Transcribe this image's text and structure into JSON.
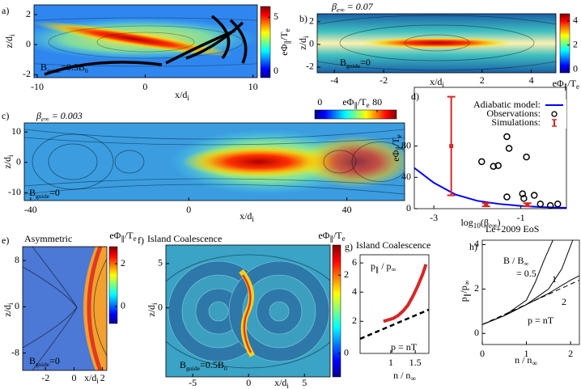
{
  "chart_data": [
    {
      "type": "heatmap",
      "label": "a)",
      "xlabel": [
        {
          "text": "x/d"
        },
        {
          "sub": "i"
        }
      ],
      "ylabel": [
        {
          "text": "z/d"
        },
        {
          "sub": "i"
        }
      ],
      "xlim": [
        -10.3,
        10.4
      ],
      "ylim": [
        -2.2,
        2.65
      ],
      "xticks": [
        -10,
        0,
        10
      ],
      "yticks": [
        -2,
        0,
        2
      ],
      "colorbar": {
        "label": [
          {
            "text": "eΦ"
          },
          {
            "sub": "∥"
          },
          {
            "text": "/T"
          },
          {
            "sub": "e"
          }
        ],
        "lim": [
          -0.6,
          6
        ],
        "ticks": [
          0,
          5
        ]
      },
      "annotations": [
        [
          {
            "text": "B"
          },
          {
            "sub": "guide"
          },
          {
            "text": "=0.5B"
          },
          {
            "sub": "0"
          }
        ]
      ]
    },
    {
      "type": "heatmap",
      "label": "b)",
      "title": [
        {
          "text": "β"
        },
        {
          "sub": "e∞"
        },
        {
          "text": " = 0.07"
        }
      ],
      "xlabel": [
        {
          "text": "x/d"
        },
        {
          "sub": "i"
        }
      ],
      "ylabel": [
        {
          "text": "z/d"
        },
        {
          "sub": "i"
        }
      ],
      "xlim": [
        -4.7,
        5.0
      ],
      "ylim": [
        -2.5,
        2.7
      ],
      "xticks": [
        -4,
        -2,
        2,
        4
      ],
      "yticks": [
        -2,
        0,
        2
      ],
      "colorbar": {
        "label": [
          {
            "text": "eΦ"
          },
          {
            "sub": "∥"
          },
          {
            "text": "/T"
          },
          {
            "sub": "e"
          }
        ],
        "lim": [
          -0.3,
          4.6
        ],
        "ticks": [
          0,
          2,
          4
        ]
      },
      "annotations": [
        [
          {
            "text": "B"
          },
          {
            "sub": "guide"
          },
          {
            "text": "=0"
          }
        ]
      ]
    },
    {
      "type": "heatmap",
      "label": "c)",
      "title": [
        {
          "text": "β"
        },
        {
          "sub": "e∞"
        },
        {
          "text": " = 0.003"
        }
      ],
      "xlabel": [
        {
          "text": "x/d"
        },
        {
          "sub": "i"
        }
      ],
      "ylabel": [
        {
          "text": "z/d"
        },
        {
          "sub": "i"
        }
      ],
      "xlim": [
        -41.6,
        54.6
      ],
      "ylim": [
        -12.6,
        13
      ],
      "xticks": [
        -40,
        0,
        40
      ],
      "yticks": [
        -10,
        0,
        10
      ],
      "colorbar": {
        "label": [
          {
            "text": "eΦ"
          },
          {
            "sub": "∥"
          },
          {
            "text": "/T"
          },
          {
            "sub": "e"
          }
        ],
        "lim": [
          -7,
          107
        ],
        "ticks": [
          0,
          80
        ]
      },
      "annotations": [
        [
          {
            "text": "B"
          },
          {
            "sub": "guide"
          },
          {
            "text": "=0"
          }
        ]
      ]
    },
    {
      "type": "scatter",
      "label": "d)",
      "xlabel": [
        {
          "text": "log"
        },
        {
          "sub": "10"
        },
        {
          "text": "(β"
        },
        {
          "sub": "e∞"
        },
        {
          "text": ")"
        }
      ],
      "ylabel": [
        {
          "text": "eΦ"
        },
        {
          "sub": "∥"
        },
        {
          "text": "/T"
        },
        {
          "sub": "e"
        }
      ],
      "xlim": [
        -3.45,
        0.05
      ],
      "ylim": [
        0,
        155
      ],
      "xticks": [
        -3,
        -1
      ],
      "yticks": [
        0,
        40,
        80
      ],
      "series": [
        {
          "name": "Adiabatic model:",
          "mark": "line",
          "color": "#0000ff",
          "x": [
            -3.45,
            -3,
            -2.5,
            -2,
            -1.5,
            -1,
            -0.5,
            0.05
          ],
          "values": [
            52,
            33,
            18,
            10,
            6,
            3.5,
            2,
            1
          ]
        },
        {
          "name": "Observations:",
          "mark": "circle",
          "color": "#000000",
          "x": [
            -1.56,
            -1.32,
            -1.27,
            -0.87,
            -1.9,
            -1.63,
            -1.52,
            -1.32,
            -0.96,
            -0.93,
            -0.69,
            -0.32,
            -0.15,
            -0.55
          ],
          "values": [
            117,
            92,
            77,
            66,
            60,
            54,
            55,
            15,
            19,
            13,
            17,
            4,
            6,
            6
          ]
        },
        {
          "name": "Simulations:",
          "mark": "errorbar",
          "color": "#d62728",
          "x": [
            -2.6,
            -1.8,
            -0.85
          ],
          "values": [
            80,
            5,
            5
          ],
          "errors": [
            63,
            2,
            2
          ]
        }
      ]
    },
    {
      "type": "heatmap",
      "label": "e)",
      "title": "Asymmetric",
      "xlabel": [
        {
          "text": "x/d"
        },
        {
          "sub": "i"
        }
      ],
      "ylabel": [
        {
          "text": "z/d"
        },
        {
          "sub": "i"
        }
      ],
      "xlim": [
        -3.6,
        2.3
      ],
      "ylim": [
        -11,
        10.4
      ],
      "xticks": [
        -2,
        0,
        2
      ],
      "yticks": [
        -8,
        0,
        8
      ],
      "colorbar": {
        "label": [
          {
            "text": "eΦ"
          },
          {
            "sub": "∥"
          },
          {
            "text": "/T"
          },
          {
            "sub": "e"
          }
        ],
        "lim": [
          -0.8,
          2.8
        ],
        "ticks": [
          0,
          2
        ]
      },
      "annotations": [
        [
          {
            "text": "B"
          },
          {
            "sub": "guide"
          },
          {
            "text": "=0"
          }
        ]
      ]
    },
    {
      "type": "heatmap",
      "label": "f)",
      "title": "Island Coalescence",
      "xlabel": [
        {
          "text": "x/d"
        },
        {
          "sub": "i"
        }
      ],
      "ylabel": [
        {
          "text": "z/d"
        },
        {
          "sub": "i"
        }
      ],
      "xlim": [
        -7.4,
        7.3
      ],
      "ylim": [
        -7.8,
        7.1
      ],
      "xticks": [
        -5,
        0,
        5
      ],
      "yticks": [
        0,
        5
      ],
      "colorbar": {
        "label": [
          {
            "text": "eΦ"
          },
          {
            "sub": "∥"
          },
          {
            "text": "/T"
          },
          {
            "sub": "e"
          }
        ],
        "lim": [
          -0.6,
          2.77
        ],
        "ticks": [
          0,
          2
        ]
      },
      "annotations": [
        [
          {
            "text": "B"
          },
          {
            "sub": "guide"
          },
          {
            "text": "=0.5B"
          },
          {
            "sub": "0"
          }
        ]
      ]
    },
    {
      "type": "line",
      "label": "g)",
      "title": "Island Coalescence",
      "xlabel": [
        {
          "text": "n / n"
        },
        {
          "sub": "∞"
        }
      ],
      "xlim": [
        0.37,
        1.78
      ],
      "ylim": [
        -0.2,
        6.56
      ],
      "xticks": [
        1,
        1.5
      ],
      "yticks": [
        2,
        4,
        6
      ],
      "series": [
        {
          "color": "#d62728",
          "width": 4,
          "x": [
            0.85,
            0.95,
            1.05,
            1.15,
            1.25,
            1.35,
            1.45,
            1.55,
            1.65,
            1.72
          ],
          "values": [
            2.0,
            2.1,
            2.2,
            2.4,
            2.7,
            3.1,
            3.7,
            4.4,
            5.2,
            5.9
          ]
        },
        {
          "color": "#000000",
          "dash": true,
          "width": 2.5,
          "x": [
            0.37,
            1.78
          ],
          "values": [
            0.8,
            2.8
          ]
        }
      ],
      "annotations": [
        [
          {
            "text": "p"
          },
          {
            "sub": "∥"
          },
          {
            "text": " / p"
          },
          {
            "sub": "∞"
          }
        ],
        "p = nT"
      ]
    },
    {
      "type": "line",
      "label": "h)",
      "title": "Le+2009 EoS",
      "xlabel": [
        {
          "text": "n / n"
        },
        {
          "sub": "∞"
        }
      ],
      "ylabel": [
        {
          "text": "p"
        },
        {
          "sub": "∥"
        },
        {
          "text": "/p"
        },
        {
          "sub": "∞"
        }
      ],
      "xlim": [
        0,
        2.2
      ],
      "ylim": [
        -0.5,
        4.2
      ],
      "xticks": [
        0,
        1,
        2
      ],
      "yticks": [
        0,
        2,
        4
      ],
      "series": [
        {
          "color": "#000000",
          "width": 1,
          "x": [
            0,
            0.5,
            1,
            1.2,
            1.4,
            1.6
          ],
          "values": [
            0.4,
            0.8,
            1.5,
            2.3,
            3.3,
            4.2
          ]
        },
        {
          "color": "#000000",
          "width": 1,
          "x": [
            0,
            0.5,
            1,
            1.5,
            1.8,
            2.05
          ],
          "values": [
            0.4,
            0.8,
            1.3,
            2.0,
            2.9,
            4.2
          ]
        },
        {
          "color": "#000000",
          "width": 1,
          "x": [
            0,
            0.5,
            1,
            1.5,
            2,
            2.2
          ],
          "values": [
            0.4,
            0.8,
            1.3,
            1.8,
            2.4,
            2.6
          ]
        },
        {
          "color": "#000000",
          "width": 1,
          "dash": true,
          "x": [
            0,
            2.2
          ],
          "values": [
            0.4,
            2.4
          ]
        }
      ],
      "annotations": [
        [
          {
            "text": "B / B"
          },
          {
            "sub": "∞"
          }
        ],
        "= 0.5",
        "1",
        "2",
        "p = nT"
      ]
    }
  ]
}
